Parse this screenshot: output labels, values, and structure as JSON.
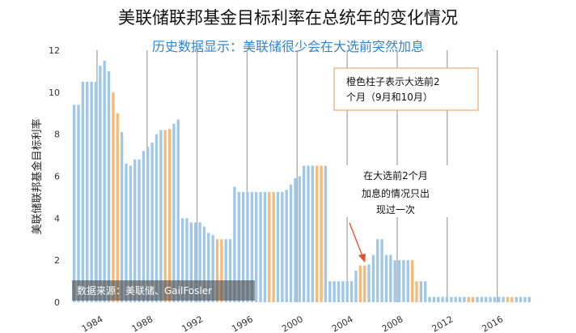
{
  "chart_data": {
    "type": "bar",
    "title": "美联储联邦基金目标利率在总统年的变化情况",
    "subtitle": "历史数据显示：美联储很少会在大选前突然加息",
    "xlabel": "",
    "ylabel": "美联储联邦基金目标利率",
    "ylim": [
      0,
      12
    ],
    "yticks": [
      0,
      2,
      4,
      6,
      8,
      10,
      12
    ],
    "xlim": [
      1982,
      2019
    ],
    "xticks": [
      1984,
      1988,
      1992,
      1996,
      2000,
      2004,
      2008,
      2012,
      2016
    ],
    "election_years": [
      1984,
      1988,
      1992,
      1996,
      2000,
      2004,
      2008,
      2012,
      2016
    ],
    "grid": false,
    "colors": {
      "regular": "#9ec7e8",
      "election_months": "#f5b97a",
      "election_line": "#a7a7a7",
      "arrow": "#e74c2b"
    },
    "series": [
      {
        "values": [
          9.4,
          9.4,
          10.5,
          10.5,
          10.5,
          10.5,
          11.25,
          11.5,
          11.0,
          10.0,
          9.0,
          8.1,
          6.6,
          6.5,
          6.8,
          6.8,
          7.2,
          7.4,
          7.6,
          8.0,
          8.2,
          8.2,
          8.25,
          8.5,
          8.7,
          4.0,
          4.0,
          3.8,
          3.8,
          3.8,
          3.6,
          3.3,
          3.2,
          3.0,
          3.0,
          3.0,
          3.0,
          5.5,
          5.25,
          5.25,
          5.25,
          5.25,
          5.25,
          5.25,
          5.25,
          5.25,
          5.25,
          5.25,
          5.25,
          5.35,
          5.6,
          5.9,
          6.0,
          6.5,
          6.5,
          6.5,
          6.5,
          6.5,
          6.5,
          1.0,
          1.0,
          1.0,
          1.0,
          1.0,
          1.0,
          1.5,
          1.75,
          1.75,
          1.8,
          2.25,
          3.0,
          3.0,
          2.25,
          2.25,
          2.0,
          2.0,
          2.0,
          2.0,
          2.0,
          1.0,
          1.0,
          1.0,
          0.25,
          0.25,
          0.25,
          0.25,
          0.25,
          0.25,
          0.25,
          0.25,
          0.25,
          0.25,
          0.25,
          0.25,
          0.25,
          0.25,
          0.25,
          0.25,
          0.25,
          0.25,
          0.25,
          0.25,
          0.25,
          0.25,
          0.25,
          0.25
        ],
        "highlight": [
          9,
          10,
          21,
          22,
          33,
          34,
          45,
          46,
          56,
          57,
          66,
          67,
          78,
          79,
          91,
          92,
          100,
          101
        ]
      }
    ],
    "annotations": [
      {
        "text": [
          "橙色柱子表示大选前2",
          "个月（9月和10月）"
        ]
      },
      {
        "text": [
          "在大选前2个月",
          "加息的情况只出",
          "现过一次"
        ]
      }
    ],
    "source": "数据来源：美联储、GailFosler"
  }
}
